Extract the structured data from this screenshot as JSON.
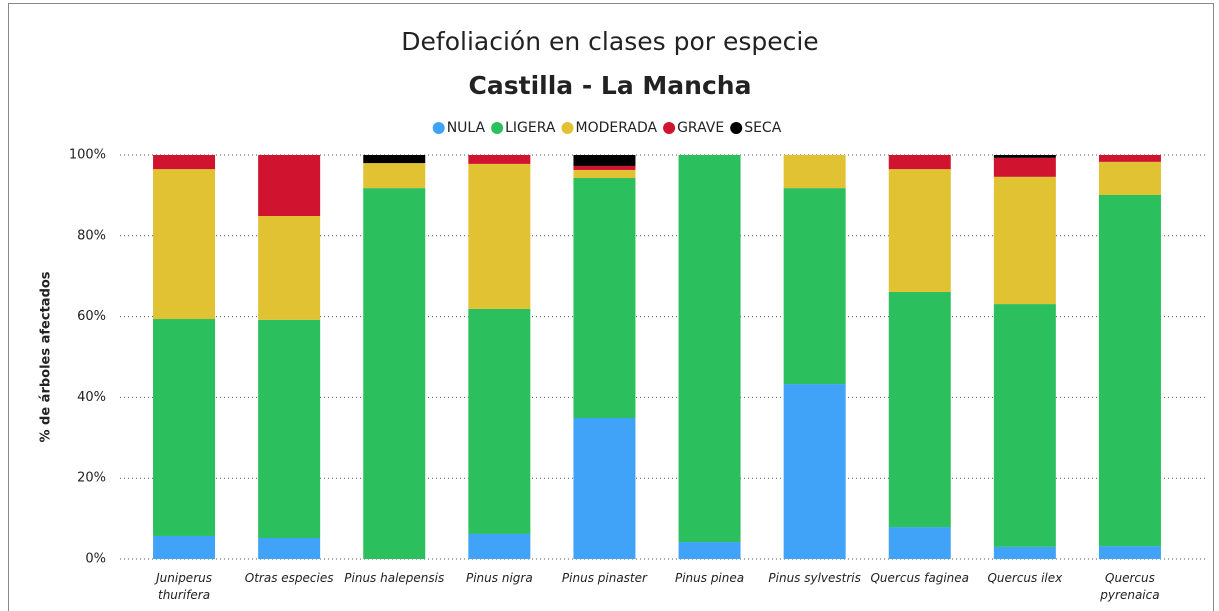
{
  "chart_data": {
    "type": "stacked_bar",
    "title": "Defoliación en clases por especie",
    "subtitle": "Castilla - La Mancha",
    "y_label": "% de árboles afectados",
    "categories": [
      "Juniperus thurifera",
      "Otras especies",
      "Pinus halepensis",
      "Pinus nigra",
      "Pinus pinaster",
      "Pinus pinea",
      "Pinus sylvestris",
      "Quercus faginea",
      "Quercus ilex",
      "Quercus pyrenaica"
    ],
    "series": [
      {
        "name": "NULA",
        "color": "#41a3f7",
        "values": [
          5.7,
          5.2,
          0,
          6.2,
          34.9,
          4.2,
          43.3,
          7.9,
          3,
          3.2
        ]
      },
      {
        "name": "LIGERA",
        "color": "#2bbf5e",
        "values": [
          53.7,
          54,
          91.8,
          55.7,
          59.4,
          95.8,
          48.5,
          58.2,
          60.1,
          86.9
        ]
      },
      {
        "name": "MODERADA",
        "color": "#e1c232",
        "values": [
          37.1,
          25.7,
          6.2,
          35.9,
          2,
          0,
          8.2,
          30.4,
          31.5,
          8.2
        ]
      },
      {
        "name": "GRAVE",
        "color": "#d0132f",
        "values": [
          3.5,
          15.1,
          0,
          2.2,
          1,
          0,
          0,
          3.5,
          4.7,
          1.7
        ]
      },
      {
        "name": "SECA",
        "color": "#000000",
        "values": [
          0,
          0,
          2,
          0,
          2.7,
          0,
          0,
          0,
          0.7,
          0
        ]
      }
    ],
    "ylim": [
      0,
      100
    ],
    "yticks": [
      {
        "value": 0,
        "label": "0%"
      },
      {
        "value": 20,
        "label": "20%"
      },
      {
        "value": 40,
        "label": "40%"
      },
      {
        "value": 60,
        "label": "60%"
      },
      {
        "value": 80,
        "label": "80%"
      },
      {
        "value": 100,
        "label": "100%"
      }
    ],
    "grid": true
  }
}
